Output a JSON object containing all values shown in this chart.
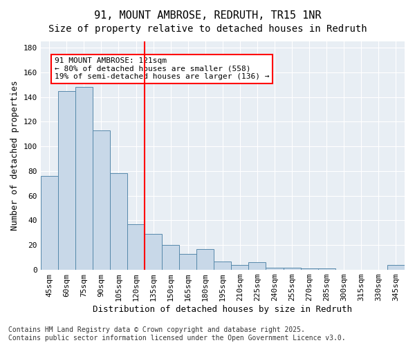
{
  "title": "91, MOUNT AMBROSE, REDRUTH, TR15 1NR",
  "subtitle": "Size of property relative to detached houses in Redruth",
  "xlabel": "Distribution of detached houses by size in Redruth",
  "ylabel": "Number of detached properties",
  "categories": [
    "45sqm",
    "60sqm",
    "75sqm",
    "90sqm",
    "105sqm",
    "120sqm",
    "135sqm",
    "150sqm",
    "165sqm",
    "180sqm",
    "195sqm",
    "210sqm",
    "225sqm",
    "240sqm",
    "255sqm",
    "270sqm",
    "285sqm",
    "300sqm",
    "315sqm",
    "330sqm",
    "345sqm"
  ],
  "values": [
    76,
    145,
    148,
    113,
    78,
    37,
    29,
    20,
    13,
    17,
    7,
    4,
    6,
    2,
    2,
    1,
    1,
    0,
    0,
    0,
    4
  ],
  "bar_color": "#c8d8e8",
  "bar_edge_color": "#5588aa",
  "vline_x": 5.5,
  "vline_color": "red",
  "annotation_text": "91 MOUNT AMBROSE: 121sqm\n← 80% of detached houses are smaller (558)\n19% of semi-detached houses are larger (136) →",
  "annotation_box_color": "white",
  "annotation_box_edge": "red",
  "ylim": [
    0,
    185
  ],
  "yticks": [
    0,
    20,
    40,
    60,
    80,
    100,
    120,
    140,
    160,
    180
  ],
  "bg_color": "#e8eef4",
  "footer_text": "Contains HM Land Registry data © Crown copyright and database right 2025.\nContains public sector information licensed under the Open Government Licence v3.0.",
  "title_fontsize": 11,
  "subtitle_fontsize": 10,
  "xlabel_fontsize": 9,
  "ylabel_fontsize": 9,
  "tick_fontsize": 8,
  "annotation_fontsize": 8,
  "footer_fontsize": 7
}
